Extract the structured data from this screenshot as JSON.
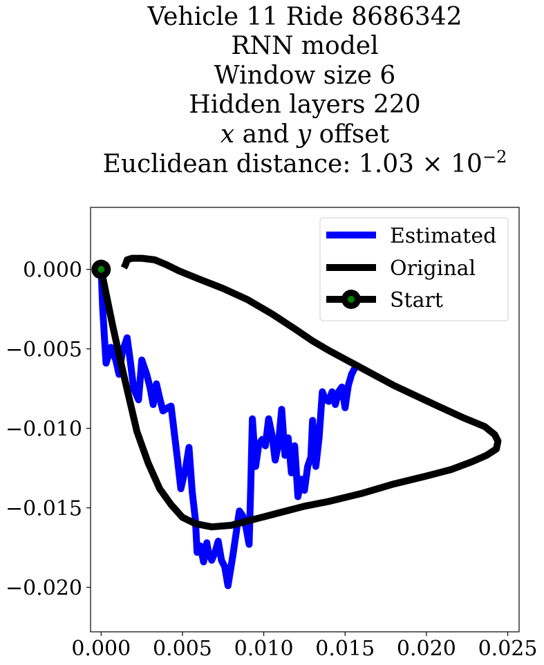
{
  "chart_data": {
    "type": "line",
    "title_lines": [
      {
        "parts": [
          {
            "text": "Vehicle 11 Ride 8686342"
          }
        ]
      },
      {
        "parts": [
          {
            "text": "RNN model"
          }
        ]
      },
      {
        "parts": [
          {
            "text": "Window size 6"
          }
        ]
      },
      {
        "parts": [
          {
            "text": "Hidden layers 220"
          }
        ]
      },
      {
        "parts": [
          {
            "text": "x",
            "italic": true
          },
          {
            "text": " and "
          },
          {
            "text": "y",
            "italic": true
          },
          {
            "text": " offset"
          }
        ]
      },
      {
        "parts": [
          {
            "text": "Euclidean distance: 1.03 × 10"
          },
          {
            "text": "−2",
            "sup": true
          }
        ]
      }
    ],
    "xlabel": "",
    "ylabel": "",
    "xlim": [
      -0.00065,
      0.0257
    ],
    "ylim": [
      -0.0228,
      0.0039
    ],
    "xticks": [
      0.0,
      0.005,
      0.01,
      0.015,
      0.02,
      0.025
    ],
    "xtick_labels": [
      "0.000",
      "0.005",
      "0.010",
      "0.015",
      "0.020",
      "0.025"
    ],
    "yticks": [
      0.0,
      -0.005,
      -0.01,
      -0.015,
      -0.02
    ],
    "ytick_labels": [
      "0.000",
      "−0.005",
      "−0.010",
      "−0.015",
      "−0.020"
    ],
    "grid": false,
    "legend_position": "top-right",
    "series": [
      {
        "name": "Estimated",
        "color": "#0000ff",
        "style": "line",
        "points": [
          [
            0.0,
            0.0
          ],
          [
            0.0001,
            -0.0025
          ],
          [
            0.0003,
            -0.0059
          ],
          [
            0.0006,
            -0.0049
          ],
          [
            0.0009,
            -0.0057
          ],
          [
            0.0011,
            -0.0066
          ],
          [
            0.0013,
            -0.0052
          ],
          [
            0.0016,
            -0.0043
          ],
          [
            0.0018,
            -0.0058
          ],
          [
            0.002,
            -0.0075
          ],
          [
            0.0023,
            -0.0082
          ],
          [
            0.0025,
            -0.0057
          ],
          [
            0.0028,
            -0.0066
          ],
          [
            0.003,
            -0.0074
          ],
          [
            0.0032,
            -0.0085
          ],
          [
            0.0034,
            -0.0072
          ],
          [
            0.0036,
            -0.0081
          ],
          [
            0.0038,
            -0.0089
          ],
          [
            0.0041,
            -0.0087
          ],
          [
            0.0043,
            -0.0086
          ],
          [
            0.0045,
            -0.0103
          ],
          [
            0.0047,
            -0.012
          ],
          [
            0.0049,
            -0.0138
          ],
          [
            0.0052,
            -0.0125
          ],
          [
            0.0054,
            -0.0112
          ],
          [
            0.0056,
            -0.014
          ],
          [
            0.0058,
            -0.0158
          ],
          [
            0.0059,
            -0.0178
          ],
          [
            0.0061,
            -0.0174
          ],
          [
            0.0063,
            -0.0184
          ],
          [
            0.0065,
            -0.0172
          ],
          [
            0.0066,
            -0.0178
          ],
          [
            0.0068,
            -0.0183
          ],
          [
            0.007,
            -0.0178
          ],
          [
            0.0072,
            -0.0171
          ],
          [
            0.0074,
            -0.0183
          ],
          [
            0.0076,
            -0.0187
          ],
          [
            0.0078,
            -0.0199
          ],
          [
            0.0081,
            -0.018
          ],
          [
            0.0083,
            -0.0166
          ],
          [
            0.0085,
            -0.0152
          ],
          [
            0.0087,
            -0.0155
          ],
          [
            0.0089,
            -0.0162
          ],
          [
            0.0091,
            -0.0173
          ],
          [
            0.0092,
            -0.0136
          ],
          [
            0.0093,
            -0.0094
          ],
          [
            0.0095,
            -0.0124
          ],
          [
            0.0097,
            -0.011
          ],
          [
            0.0099,
            -0.0107
          ],
          [
            0.0101,
            -0.0111
          ],
          [
            0.0103,
            -0.0094
          ],
          [
            0.0105,
            -0.0104
          ],
          [
            0.0107,
            -0.012
          ],
          [
            0.0109,
            -0.011
          ],
          [
            0.0111,
            -0.0088
          ],
          [
            0.0113,
            -0.0117
          ],
          [
            0.0115,
            -0.0106
          ],
          [
            0.0117,
            -0.0128
          ],
          [
            0.0119,
            -0.0111
          ],
          [
            0.0121,
            -0.0143
          ],
          [
            0.0123,
            -0.0132
          ],
          [
            0.0125,
            -0.0139
          ],
          [
            0.0127,
            -0.0124
          ],
          [
            0.0129,
            -0.0118
          ],
          [
            0.013,
            -0.0095
          ],
          [
            0.0132,
            -0.0124
          ],
          [
            0.0134,
            -0.0106
          ],
          [
            0.0136,
            -0.0077
          ],
          [
            0.0138,
            -0.0082
          ],
          [
            0.014,
            -0.0083
          ],
          [
            0.0142,
            -0.0077
          ],
          [
            0.0144,
            -0.0085
          ],
          [
            0.0146,
            -0.0077
          ],
          [
            0.0148,
            -0.0074
          ],
          [
            0.015,
            -0.0087
          ],
          [
            0.0152,
            -0.0073
          ],
          [
            0.0154,
            -0.0066
          ],
          [
            0.0156,
            -0.0062
          ]
        ]
      },
      {
        "name": "Original",
        "color": "#000000",
        "style": "line",
        "points": [
          [
            0.0,
            0.0
          ],
          [
            0.0003,
            -0.0015
          ],
          [
            0.0007,
            -0.0035
          ],
          [
            0.0012,
            -0.0058
          ],
          [
            0.0017,
            -0.008
          ],
          [
            0.0022,
            -0.0102
          ],
          [
            0.0029,
            -0.0122
          ],
          [
            0.0036,
            -0.0138
          ],
          [
            0.0043,
            -0.0148
          ],
          [
            0.005,
            -0.0156
          ],
          [
            0.0058,
            -0.016
          ],
          [
            0.0068,
            -0.0162
          ],
          [
            0.008,
            -0.0161
          ],
          [
            0.0095,
            -0.0157
          ],
          [
            0.011,
            -0.0153
          ],
          [
            0.0125,
            -0.0149
          ],
          [
            0.014,
            -0.0146
          ],
          [
            0.016,
            -0.0141
          ],
          [
            0.018,
            -0.0135
          ],
          [
            0.02,
            -0.013
          ],
          [
            0.0215,
            -0.0126
          ],
          [
            0.0228,
            -0.0121
          ],
          [
            0.0237,
            -0.0117
          ],
          [
            0.0243,
            -0.0113
          ],
          [
            0.0244,
            -0.0108
          ],
          [
            0.0242,
            -0.0104
          ],
          [
            0.0236,
            -0.0099
          ],
          [
            0.0222,
            -0.0093
          ],
          [
            0.0205,
            -0.0085
          ],
          [
            0.018,
            -0.0073
          ],
          [
            0.016,
            -0.0062
          ],
          [
            0.014,
            -0.0051
          ],
          [
            0.013,
            -0.0045
          ],
          [
            0.012,
            -0.0038
          ],
          [
            0.0105,
            -0.0028
          ],
          [
            0.009,
            -0.0019
          ],
          [
            0.0075,
            -0.0012
          ],
          [
            0.006,
            -0.0006
          ],
          [
            0.0048,
            -0.0001
          ],
          [
            0.004,
            0.0003
          ],
          [
            0.0033,
            0.0006
          ],
          [
            0.0025,
            0.0007
          ],
          [
            0.0019,
            0.0007
          ],
          [
            0.0016,
            0.0006
          ],
          [
            0.0015,
            0.0003
          ],
          [
            0.0014,
            0.0001
          ]
        ]
      },
      {
        "name": "Start",
        "color": "#000000",
        "marker_face": "#008000",
        "style": "marker",
        "points": [
          [
            0.0,
            0.0
          ]
        ]
      }
    ]
  }
}
